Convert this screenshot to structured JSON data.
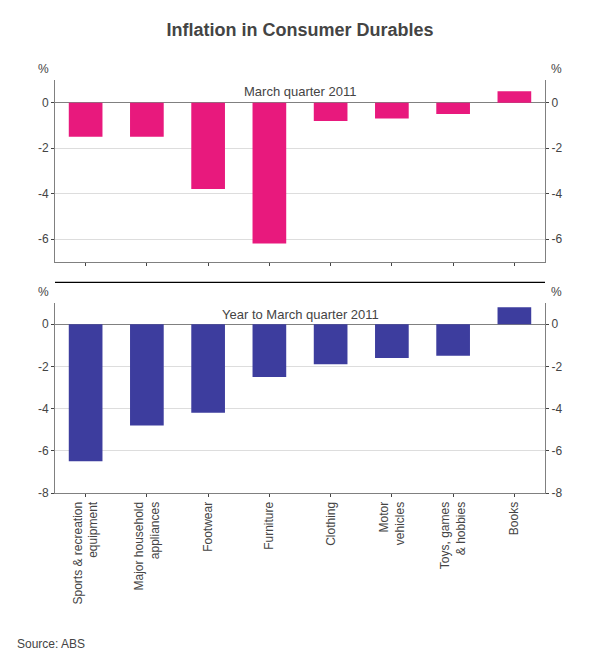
{
  "chart_data": [
    {
      "type": "bar",
      "title": "Inflation in Consumer Durables",
      "subtitle": "March quarter 2011",
      "categories": [
        "Sports & recreation\nequipment",
        "Major household\nappliances",
        "Footwear",
        "Furniture",
        "Clothing",
        "Motor\nvehicles",
        "Toys, games\n& hobbies",
        "Books"
      ],
      "values": [
        -1.5,
        -1.5,
        -3.8,
        -6.2,
        -0.8,
        -0.7,
        -0.5,
        0.5
      ],
      "color": "#E8197D",
      "ylim": [
        -7,
        1
      ],
      "yticks": [
        0,
        -2,
        -4,
        -6
      ],
      "y2lim": [
        -7,
        1
      ],
      "y2ticks": [
        0,
        -2,
        -4,
        -6
      ],
      "ylabel": "%",
      "y2label": "%",
      "grid": true,
      "tick_labels": "y"
    },
    {
      "type": "bar",
      "subtitle": "Year to March quarter 2011",
      "categories": [
        "Sports & recreation\nequipment",
        "Major household\nappliances",
        "Footwear",
        "Furniture",
        "Clothing",
        "Motor\nvehicles",
        "Toys, games\n& hobbies",
        "Books"
      ],
      "values": [
        -6.5,
        -4.8,
        -4.2,
        -2.5,
        -1.9,
        -1.6,
        -1.5,
        0.8
      ],
      "color": "#3D3D9E",
      "ylim": [
        -8,
        1
      ],
      "yticks": [
        0,
        -2,
        -4,
        -6,
        -8
      ],
      "y2lim": [
        -8,
        1
      ],
      "y2ticks": [
        0,
        -2,
        -4,
        -6,
        -8
      ],
      "ylabel": "%",
      "y2label": "%",
      "grid": true,
      "annotations": [
        "Source: ABS"
      ]
    }
  ]
}
